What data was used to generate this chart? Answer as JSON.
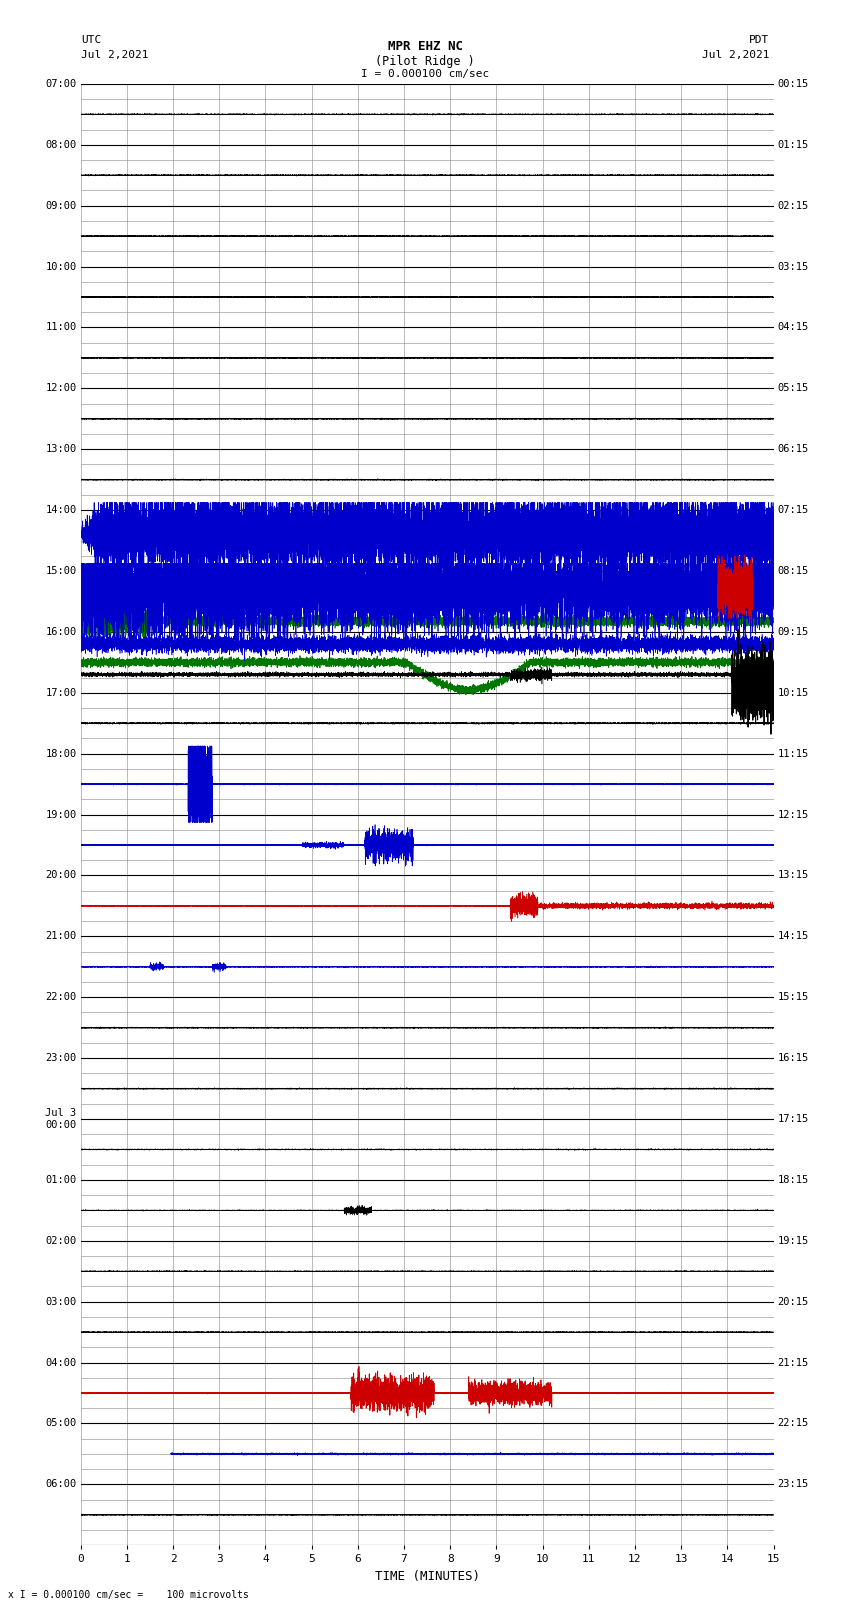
{
  "title_line1": "MPR EHZ NC",
  "title_line2": "(Pilot Ridge )",
  "scale_text": "I = 0.000100 cm/sec",
  "left_label_1": "UTC",
  "left_label_2": "Jul 2,2021",
  "right_label_1": "PDT",
  "right_label_2": "Jul 2,2021",
  "bottom_label": "x I = 0.000100 cm/sec =    100 microvolts",
  "xlabel": "TIME (MINUTES)",
  "left_times": [
    "07:00",
    "08:00",
    "09:00",
    "10:00",
    "11:00",
    "12:00",
    "13:00",
    "14:00",
    "15:00",
    "16:00",
    "17:00",
    "18:00",
    "19:00",
    "20:00",
    "21:00",
    "22:00",
    "23:00",
    "Jul 3\n00:00",
    "01:00",
    "02:00",
    "03:00",
    "04:00",
    "05:00",
    "06:00"
  ],
  "right_times": [
    "00:15",
    "01:15",
    "02:15",
    "03:15",
    "04:15",
    "05:15",
    "06:15",
    "07:15",
    "08:15",
    "09:15",
    "10:15",
    "11:15",
    "12:15",
    "13:15",
    "14:15",
    "15:15",
    "16:15",
    "17:15",
    "18:15",
    "19:15",
    "20:15",
    "21:15",
    "22:15",
    "23:15"
  ],
  "n_rows": 24,
  "sub_rows": 4,
  "x_min": 0,
  "x_max": 15,
  "x_ticks": [
    0,
    1,
    2,
    3,
    4,
    5,
    6,
    7,
    8,
    9,
    10,
    11,
    12,
    13,
    14,
    15
  ],
  "background_color": "#ffffff",
  "major_grid_color": "#000000",
  "minor_grid_color": "#888888",
  "trace_color_blue": "#0000cc",
  "trace_color_green": "#007700",
  "trace_color_red": "#cc0000",
  "trace_color_black": "#000000",
  "seed": 42
}
